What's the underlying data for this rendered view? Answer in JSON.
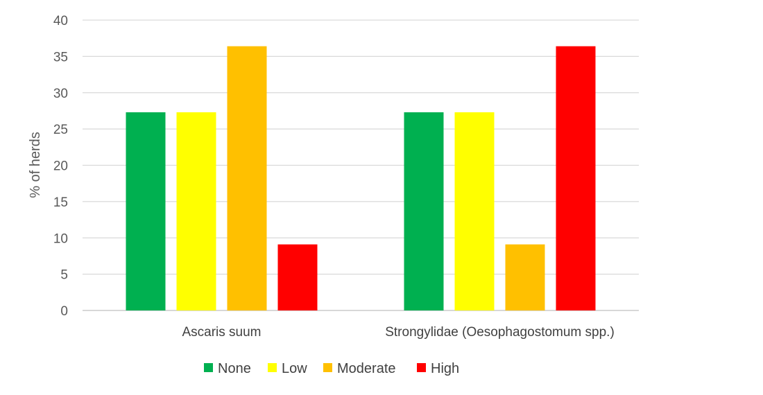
{
  "chart_data": {
    "type": "bar",
    "title": "",
    "xlabel": "",
    "ylabel": "% of herds",
    "categories": [
      "Ascaris suum",
      "Strongylidae (Oesophagostomum spp.)"
    ],
    "series": [
      {
        "name": "None",
        "values": [
          27.3,
          27.3
        ],
        "color": "#00b050"
      },
      {
        "name": "Low",
        "values": [
          27.3,
          27.3
        ],
        "color": "#ffff00"
      },
      {
        "name": "Moderate",
        "values": [
          36.4,
          9.1
        ],
        "color": "#ffc000"
      },
      {
        "name": "High",
        "values": [
          9.1,
          36.4
        ],
        "color": "#ff0000"
      }
    ],
    "ylim": [
      0,
      40
    ],
    "yticks": [
      0,
      5,
      10,
      15,
      20,
      25,
      30,
      35,
      40
    ],
    "grid": true,
    "legend_position": "bottom"
  }
}
